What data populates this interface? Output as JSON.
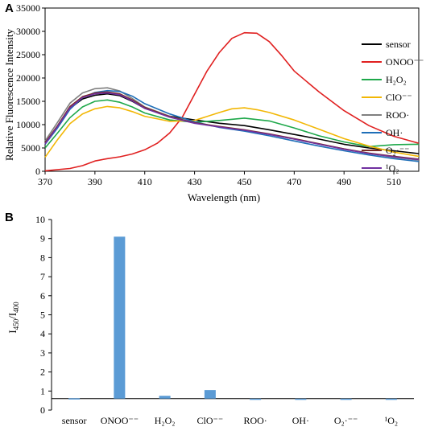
{
  "chart_data": [
    {
      "type": "line",
      "panel_label": "A",
      "title": "",
      "xlabel": "Wavelength (nm)",
      "ylabel": "Relative Fluorescence Intensity",
      "xlim": [
        370,
        520
      ],
      "ylim": [
        0,
        35000
      ],
      "x_ticks": [
        370,
        390,
        410,
        430,
        450,
        470,
        490,
        510
      ],
      "y_ticks": [
        0,
        5000,
        10000,
        15000,
        20000,
        25000,
        30000,
        35000
      ],
      "grid": false,
      "legend_position": "right",
      "series": [
        {
          "name": "sensor",
          "color": "#000000",
          "x": [
            370,
            375,
            380,
            385,
            390,
            395,
            400,
            405,
            410,
            420,
            430,
            440,
            450,
            460,
            470,
            480,
            490,
            500,
            510,
            520
          ],
          "y": [
            6000,
            9500,
            13500,
            15500,
            16300,
            16600,
            16200,
            15000,
            13500,
            11800,
            11000,
            10300,
            9800,
            8900,
            7900,
            6900,
            5800,
            5000,
            4400,
            3800
          ]
        },
        {
          "name": "ONOO⁻⁻",
          "color": "#e02020",
          "x": [
            370,
            380,
            385,
            390,
            395,
            400,
            405,
            410,
            415,
            420,
            425,
            430,
            435,
            440,
            445,
            450,
            455,
            460,
            465,
            470,
            480,
            490,
            500,
            510,
            520
          ],
          "y": [
            100,
            600,
            1200,
            2200,
            2700,
            3100,
            3700,
            4600,
            6000,
            8200,
            11500,
            16500,
            21500,
            25500,
            28500,
            29700,
            29600,
            27800,
            24800,
            21500,
            17000,
            13000,
            9800,
            7500,
            6000
          ]
        },
        {
          "name": "H₂O₂",
          "color": "#1ea84a",
          "x": [
            370,
            375,
            380,
            385,
            390,
            395,
            400,
            405,
            410,
            420,
            430,
            440,
            450,
            460,
            470,
            480,
            490,
            500,
            510,
            520
          ],
          "y": [
            5000,
            8200,
            11500,
            13800,
            15000,
            15300,
            14800,
            13800,
            12500,
            11000,
            10500,
            10900,
            11400,
            10800,
            9300,
            7600,
            6300,
            5300,
            5700,
            5800
          ]
        },
        {
          "name": "ClO⁻⁻",
          "color": "#f2b705",
          "x": [
            370,
            375,
            380,
            385,
            390,
            395,
            400,
            405,
            410,
            420,
            430,
            440,
            445,
            450,
            455,
            460,
            470,
            480,
            490,
            500,
            510,
            520
          ],
          "y": [
            3000,
            6800,
            10200,
            12300,
            13400,
            13900,
            13600,
            12800,
            11800,
            10700,
            10900,
            12600,
            13400,
            13600,
            13200,
            12600,
            11000,
            9000,
            7000,
            5400,
            4100,
            3200
          ]
        },
        {
          "name": "ROO·",
          "color": "#7f7f7f",
          "x": [
            370,
            375,
            380,
            385,
            390,
            395,
            400,
            405,
            410,
            420,
            430,
            440,
            450,
            460,
            470,
            480,
            490,
            500,
            510,
            520
          ],
          "y": [
            6500,
            10500,
            14600,
            16800,
            17700,
            17900,
            17200,
            15600,
            13800,
            11800,
            10400,
            9500,
            8800,
            7900,
            6900,
            5800,
            4800,
            3800,
            3000,
            2400
          ]
        },
        {
          "name": "OH·",
          "color": "#1f6fb8",
          "x": [
            370,
            375,
            380,
            385,
            390,
            395,
            400,
            405,
            410,
            420,
            430,
            440,
            450,
            460,
            470,
            480,
            490,
            500,
            510,
            520
          ],
          "y": [
            5800,
            9300,
            13300,
            15800,
            16900,
            17300,
            17100,
            16100,
            14500,
            12300,
            10600,
            9400,
            8600,
            7600,
            6500,
            5400,
            4400,
            3500,
            2700,
            2100
          ]
        },
        {
          "name": "O₂·⁻⁻",
          "color": "#7b2d26",
          "x": [
            370,
            375,
            380,
            385,
            390,
            395,
            400,
            405,
            410,
            420,
            430,
            440,
            450,
            460,
            470,
            480,
            490,
            500,
            510,
            520
          ],
          "y": [
            6100,
            9800,
            13900,
            16000,
            16800,
            17000,
            16600,
            15300,
            13700,
            11700,
            10400,
            9600,
            8900,
            8000,
            7000,
            5900,
            4800,
            3900,
            3200,
            2600
          ]
        },
        {
          "name": "¹O₂",
          "color": "#7030a0",
          "x": [
            370,
            375,
            380,
            385,
            390,
            395,
            400,
            405,
            410,
            420,
            430,
            440,
            450,
            460,
            470,
            480,
            490,
            500,
            510,
            520
          ],
          "y": [
            5900,
            9600,
            13600,
            15800,
            16600,
            16800,
            16400,
            15100,
            13500,
            11600,
            10300,
            9500,
            8800,
            7900,
            6900,
            5800,
            4700,
            3800,
            3100,
            2500
          ]
        }
      ]
    },
    {
      "type": "bar",
      "panel_label": "B",
      "title": "",
      "xlabel": "",
      "ylabel": "I450/I400",
      "ylabel_main": "I",
      "ylabel_sub1": "450",
      "ylabel_sep": "/I",
      "ylabel_sub2": "400",
      "ylim": [
        0,
        10
      ],
      "y_ticks": [
        0,
        1,
        2,
        3,
        4,
        5,
        6,
        7,
        8,
        9,
        10
      ],
      "baseline": 0.6,
      "bar_color": "#5b9bd5",
      "grid": false,
      "categories": [
        "sensor",
        "ONOO⁻⁻",
        "H₂O₂",
        "ClO⁻⁻",
        "ROO·",
        "OH·",
        "O₂·⁻⁻",
        "¹O₂"
      ],
      "values": [
        0.62,
        9.1,
        0.75,
        1.05,
        0.59,
        0.56,
        0.58,
        0.58
      ]
    }
  ]
}
